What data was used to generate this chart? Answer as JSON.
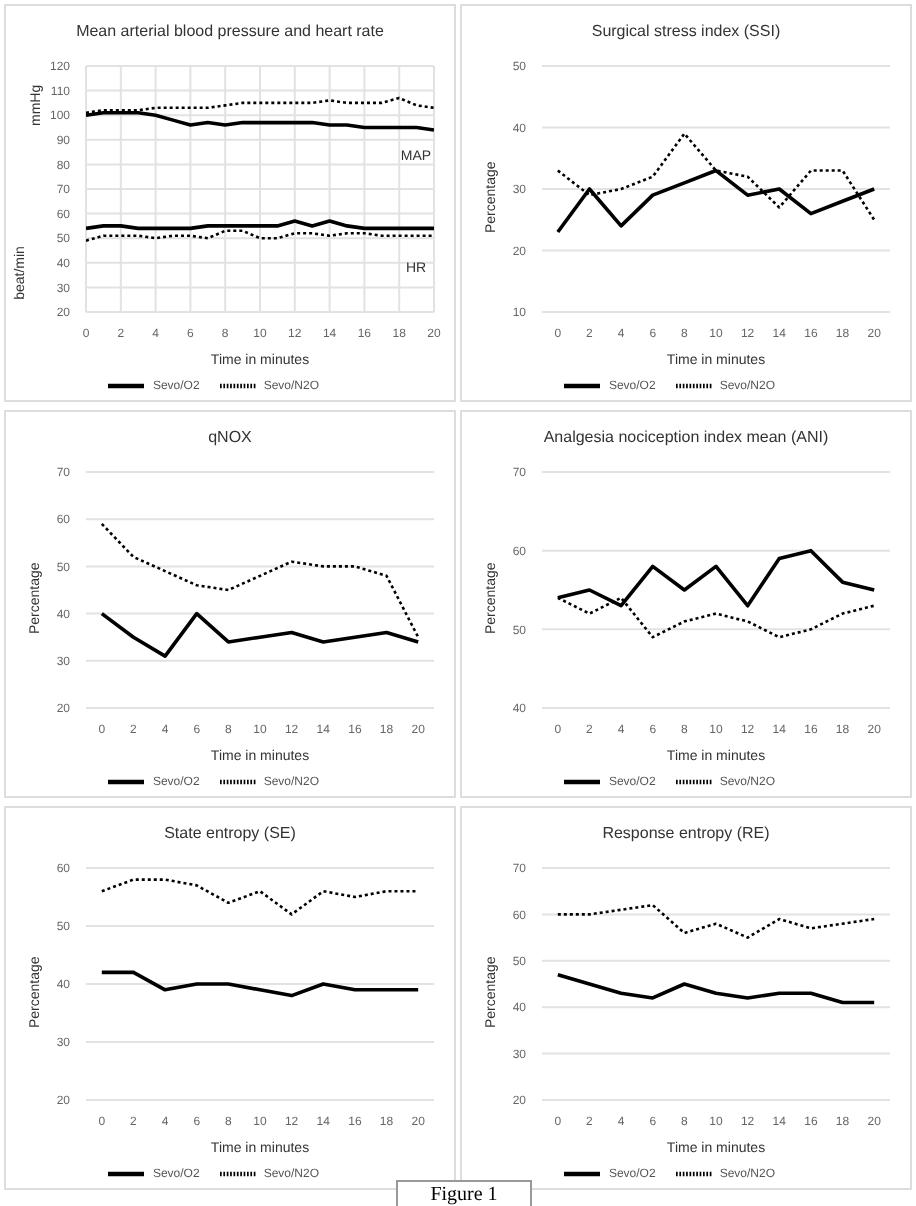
{
  "chart_data": [
    {
      "type": "line",
      "title": "Mean arterial blood pressure and heart rate",
      "xlabel": "Time in minutes",
      "ylabel": "mmHg",
      "annotations": [
        "MAP",
        "HR",
        "beat/min"
      ],
      "x": [
        0,
        1,
        2,
        3,
        4,
        5,
        6,
        7,
        8,
        9,
        10,
        11,
        12,
        13,
        14,
        15,
        16,
        17,
        18,
        19,
        20
      ],
      "xlim": [
        0,
        20
      ],
      "xticks": [
        0,
        2,
        4,
        6,
        8,
        10,
        12,
        14,
        16,
        18,
        20
      ],
      "ylim": [
        20,
        120
      ],
      "yticks": [
        20,
        30,
        40,
        50,
        60,
        70,
        80,
        90,
        100,
        110,
        120
      ],
      "grid": true,
      "legend": "bottom",
      "marker": "none",
      "series": [
        {
          "name": "Sevo/O2",
          "color": "#000000",
          "line_style": "solid",
          "values": [
            100,
            101,
            101,
            101,
            100,
            98,
            96,
            97,
            96,
            97,
            97,
            97,
            97,
            97,
            96,
            96,
            95,
            95,
            95,
            95,
            94
          ]
        },
        {
          "name": "Sevo/N2O",
          "color": "#000000",
          "line_style": "dotted",
          "values": [
            101,
            102,
            102,
            102,
            103,
            103,
            103,
            103,
            104,
            105,
            105,
            105,
            105,
            105,
            106,
            105,
            105,
            105,
            107,
            104,
            103
          ]
        },
        {
          "color": "#000000",
          "line_style": "solid",
          "values": [
            54,
            55,
            55,
            54,
            54,
            54,
            54,
            55,
            55,
            55,
            55,
            55,
            57,
            55,
            57,
            55,
            54,
            54,
            54,
            54,
            54
          ]
        },
        {
          "color": "#000000",
          "line_style": "dotted",
          "values": [
            49,
            51,
            51,
            51,
            50,
            51,
            51,
            50,
            53,
            53,
            50,
            50,
            52,
            52,
            51,
            52,
            52,
            51,
            51,
            51,
            51
          ]
        }
      ]
    },
    {
      "type": "line",
      "title": "Surgical stress index (SSI)",
      "xlabel": "Time in minutes",
      "ylabel": "Percentage",
      "x": [
        0,
        2,
        4,
        6,
        8,
        10,
        12,
        14,
        16,
        18,
        20
      ],
      "xlim": [
        -1,
        21
      ],
      "xticks": [
        0,
        2,
        4,
        6,
        8,
        10,
        12,
        14,
        16,
        18,
        20
      ],
      "ylim": [
        10,
        50
      ],
      "yticks": [
        10,
        20,
        30,
        40,
        50
      ],
      "grid": "y",
      "legend": "bottom",
      "marker": "none",
      "series": [
        {
          "name": "Sevo/O2",
          "color": "#000000",
          "line_style": "solid",
          "values": [
            23,
            30,
            24,
            29,
            31,
            33,
            29,
            30,
            26,
            28,
            30
          ]
        },
        {
          "name": "Sevo/N2O",
          "color": "#000000",
          "line_style": "dotted",
          "values": [
            33,
            29,
            30,
            32,
            39,
            33,
            32,
            27,
            33,
            33,
            25
          ]
        }
      ]
    },
    {
      "type": "line",
      "title": "qNOX",
      "xlabel": "Time in minutes",
      "ylabel": "Percentage",
      "x": [
        0,
        2,
        4,
        6,
        8,
        10,
        12,
        14,
        16,
        18,
        20
      ],
      "xlim": [
        -1,
        21
      ],
      "xticks": [
        0,
        2,
        4,
        6,
        8,
        10,
        12,
        14,
        16,
        18,
        20
      ],
      "ylim": [
        20,
        70
      ],
      "yticks": [
        20,
        30,
        40,
        50,
        60,
        70
      ],
      "grid": "y",
      "legend": "bottom",
      "marker": "none",
      "series": [
        {
          "name": "Sevo/O2",
          "color": "#000000",
          "line_style": "solid",
          "values": [
            40,
            35,
            31,
            40,
            34,
            35,
            36,
            34,
            35,
            36,
            34
          ]
        },
        {
          "name": "Sevo/N2O",
          "color": "#000000",
          "line_style": "dotted",
          "values": [
            59,
            52,
            49,
            46,
            45,
            48,
            51,
            50,
            50,
            48,
            35
          ]
        }
      ]
    },
    {
      "type": "line",
      "title": "Analgesia nociception index mean (ANI)",
      "xlabel": "Time in minutes",
      "ylabel": "Percentage",
      "x": [
        0,
        2,
        4,
        6,
        8,
        10,
        12,
        14,
        16,
        18,
        20
      ],
      "xlim": [
        -1,
        21
      ],
      "xticks": [
        0,
        2,
        4,
        6,
        8,
        10,
        12,
        14,
        16,
        18,
        20
      ],
      "ylim": [
        40,
        70
      ],
      "yticks": [
        40,
        50,
        60,
        70
      ],
      "grid": "y",
      "legend": "bottom",
      "marker": "none",
      "series": [
        {
          "name": "Sevo/O2",
          "color": "#000000",
          "line_style": "solid",
          "values": [
            54,
            55,
            53,
            58,
            55,
            58,
            53,
            59,
            60,
            56,
            55
          ]
        },
        {
          "name": "Sevo/N2O",
          "color": "#000000",
          "line_style": "dotted",
          "values": [
            54,
            52,
            54,
            49,
            51,
            52,
            51,
            49,
            50,
            52,
            53
          ]
        }
      ]
    },
    {
      "type": "line",
      "title": "State entropy (SE)",
      "xlabel": "Time in minutes",
      "ylabel": "Percentage",
      "x": [
        0,
        2,
        4,
        6,
        8,
        10,
        12,
        14,
        16,
        18,
        20
      ],
      "xlim": [
        -1,
        21
      ],
      "xticks": [
        0,
        2,
        4,
        6,
        8,
        10,
        12,
        14,
        16,
        18,
        20
      ],
      "ylim": [
        20,
        60
      ],
      "yticks": [
        20,
        30,
        40,
        50,
        60
      ],
      "grid": "y",
      "legend": "bottom",
      "marker": "none",
      "series": [
        {
          "name": "Sevo/O2",
          "color": "#000000",
          "line_style": "solid",
          "values": [
            42,
            42,
            39,
            40,
            40,
            39,
            38,
            40,
            39,
            39,
            39
          ]
        },
        {
          "name": "Sevo/N2O",
          "color": "#000000",
          "line_style": "dotted",
          "values": [
            56,
            58,
            58,
            57,
            54,
            56,
            52,
            56,
            55,
            56,
            56
          ]
        }
      ]
    },
    {
      "type": "line",
      "title": "Response entropy (RE)",
      "xlabel": "Time in minutes",
      "ylabel": "Percentage",
      "x": [
        0,
        2,
        4,
        6,
        8,
        10,
        12,
        14,
        16,
        18,
        20
      ],
      "xlim": [
        -1,
        21
      ],
      "xticks": [
        0,
        2,
        4,
        6,
        8,
        10,
        12,
        14,
        16,
        18,
        20
      ],
      "ylim": [
        20,
        70
      ],
      "yticks": [
        20,
        30,
        40,
        50,
        60,
        70
      ],
      "grid": "y",
      "legend": "bottom",
      "marker": "none",
      "series": [
        {
          "name": "Sevo/O2",
          "color": "#000000",
          "line_style": "solid",
          "values": [
            47,
            45,
            43,
            42,
            45,
            43,
            42,
            43,
            43,
            41,
            41
          ]
        },
        {
          "name": "Sevo/N2O",
          "color": "#000000",
          "line_style": "dotted",
          "values": [
            60,
            60,
            61,
            62,
            56,
            58,
            55,
            59,
            57,
            58,
            59
          ]
        }
      ]
    },
    {
      "type": "other",
      "title": "Figure 1"
    }
  ]
}
